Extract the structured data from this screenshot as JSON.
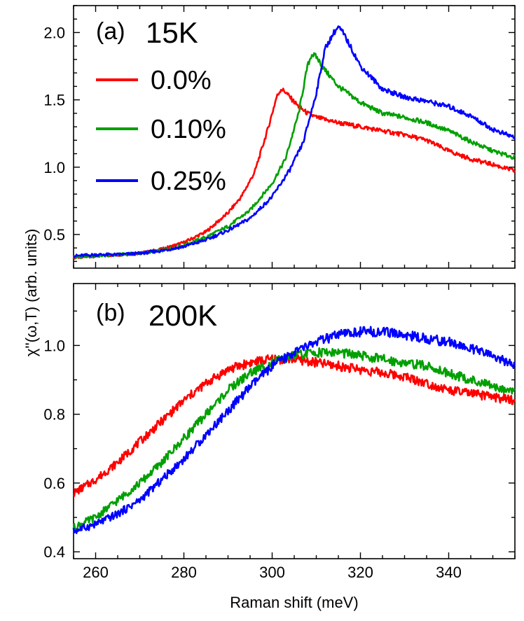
{
  "chart_data": [
    {
      "type": "line",
      "panel": "(a)",
      "temperature": "15K",
      "xlabel": "Raman shift (meV)",
      "ylabel": "χ''(ω,T) (arb. units)",
      "xlim": [
        255,
        355
      ],
      "ylim": [
        0.25,
        2.2
      ],
      "xticks": [
        260,
        280,
        300,
        320,
        340
      ],
      "yticks": [
        0.5,
        1.0,
        1.5,
        2.0
      ],
      "ytick_labels": [
        "0.5",
        "1.0",
        "1.5",
        "2.0"
      ],
      "legend": {
        "placement": "upper-left"
      },
      "series": [
        {
          "name": "0.0%",
          "color": "#ff0000",
          "x": [
            255,
            260,
            265,
            270,
            275,
            280,
            285,
            290,
            293,
            296,
            299,
            301,
            302,
            303,
            304,
            306,
            308,
            310,
            315,
            320,
            325,
            330,
            335,
            340,
            345,
            350,
            355
          ],
          "y": [
            0.33,
            0.34,
            0.35,
            0.36,
            0.39,
            0.44,
            0.52,
            0.66,
            0.78,
            0.96,
            1.28,
            1.52,
            1.58,
            1.56,
            1.52,
            1.45,
            1.4,
            1.37,
            1.33,
            1.3,
            1.27,
            1.24,
            1.2,
            1.12,
            1.06,
            1.02,
            0.97
          ]
        },
        {
          "name": "0.10%",
          "color": "#00a000",
          "x": [
            255,
            260,
            265,
            270,
            275,
            280,
            285,
            290,
            295,
            300,
            303,
            306,
            308,
            309,
            310,
            312,
            315,
            320,
            325,
            330,
            335,
            340,
            345,
            350,
            355
          ],
          "y": [
            0.33,
            0.34,
            0.35,
            0.36,
            0.38,
            0.42,
            0.48,
            0.56,
            0.68,
            0.88,
            1.06,
            1.4,
            1.75,
            1.84,
            1.82,
            1.72,
            1.6,
            1.48,
            1.4,
            1.37,
            1.33,
            1.27,
            1.19,
            1.12,
            1.07
          ]
        },
        {
          "name": "0.25%",
          "color": "#0000ff",
          "x": [
            255,
            260,
            265,
            270,
            275,
            280,
            285,
            290,
            295,
            300,
            304,
            307,
            310,
            312,
            314,
            315,
            316,
            318,
            320,
            325,
            330,
            335,
            340,
            345,
            350,
            355
          ],
          "y": [
            0.34,
            0.35,
            0.35,
            0.36,
            0.38,
            0.41,
            0.46,
            0.53,
            0.62,
            0.78,
            0.98,
            1.18,
            1.55,
            1.88,
            2.0,
            2.04,
            2.0,
            1.88,
            1.75,
            1.58,
            1.52,
            1.49,
            1.45,
            1.38,
            1.28,
            1.22
          ]
        }
      ]
    },
    {
      "type": "line",
      "panel": "(b)",
      "temperature": "200K",
      "xlabel": "Raman shift (meV)",
      "ylabel": "χ''(ω,T) (arb. units)",
      "xlim": [
        255,
        355
      ],
      "ylim": [
        0.38,
        1.18
      ],
      "xticks": [
        260,
        280,
        300,
        320,
        340
      ],
      "xtick_labels": [
        "260",
        "280",
        "300",
        "320",
        "340"
      ],
      "yticks": [
        0.4,
        0.6,
        0.8,
        1.0
      ],
      "ytick_labels": [
        "0.4",
        "0.6",
        "0.8",
        "1.0"
      ],
      "series": [
        {
          "name": "0.0%",
          "color": "#ff0000",
          "x": [
            255,
            260,
            265,
            270,
            275,
            280,
            285,
            290,
            295,
            300,
            305,
            310,
            315,
            320,
            325,
            330,
            335,
            340,
            345,
            350,
            355
          ],
          "y": [
            0.57,
            0.61,
            0.66,
            0.72,
            0.78,
            0.84,
            0.89,
            0.93,
            0.95,
            0.96,
            0.96,
            0.95,
            0.94,
            0.93,
            0.92,
            0.91,
            0.89,
            0.87,
            0.86,
            0.85,
            0.84
          ]
        },
        {
          "name": "0.10%",
          "color": "#00a000",
          "x": [
            255,
            260,
            265,
            270,
            275,
            280,
            285,
            290,
            295,
            300,
            305,
            310,
            315,
            320,
            325,
            330,
            335,
            340,
            345,
            350,
            355
          ],
          "y": [
            0.47,
            0.5,
            0.55,
            0.6,
            0.66,
            0.73,
            0.8,
            0.87,
            0.92,
            0.95,
            0.97,
            0.98,
            0.98,
            0.97,
            0.96,
            0.95,
            0.94,
            0.92,
            0.9,
            0.88,
            0.87
          ]
        },
        {
          "name": "0.25%",
          "color": "#0000ff",
          "x": [
            255,
            260,
            265,
            270,
            275,
            280,
            285,
            290,
            295,
            300,
            305,
            310,
            315,
            320,
            325,
            330,
            335,
            340,
            345,
            350,
            355
          ],
          "y": [
            0.46,
            0.48,
            0.51,
            0.55,
            0.61,
            0.67,
            0.74,
            0.81,
            0.88,
            0.94,
            0.98,
            1.01,
            1.03,
            1.04,
            1.04,
            1.03,
            1.02,
            1.01,
            0.99,
            0.97,
            0.94
          ]
        }
      ]
    }
  ]
}
